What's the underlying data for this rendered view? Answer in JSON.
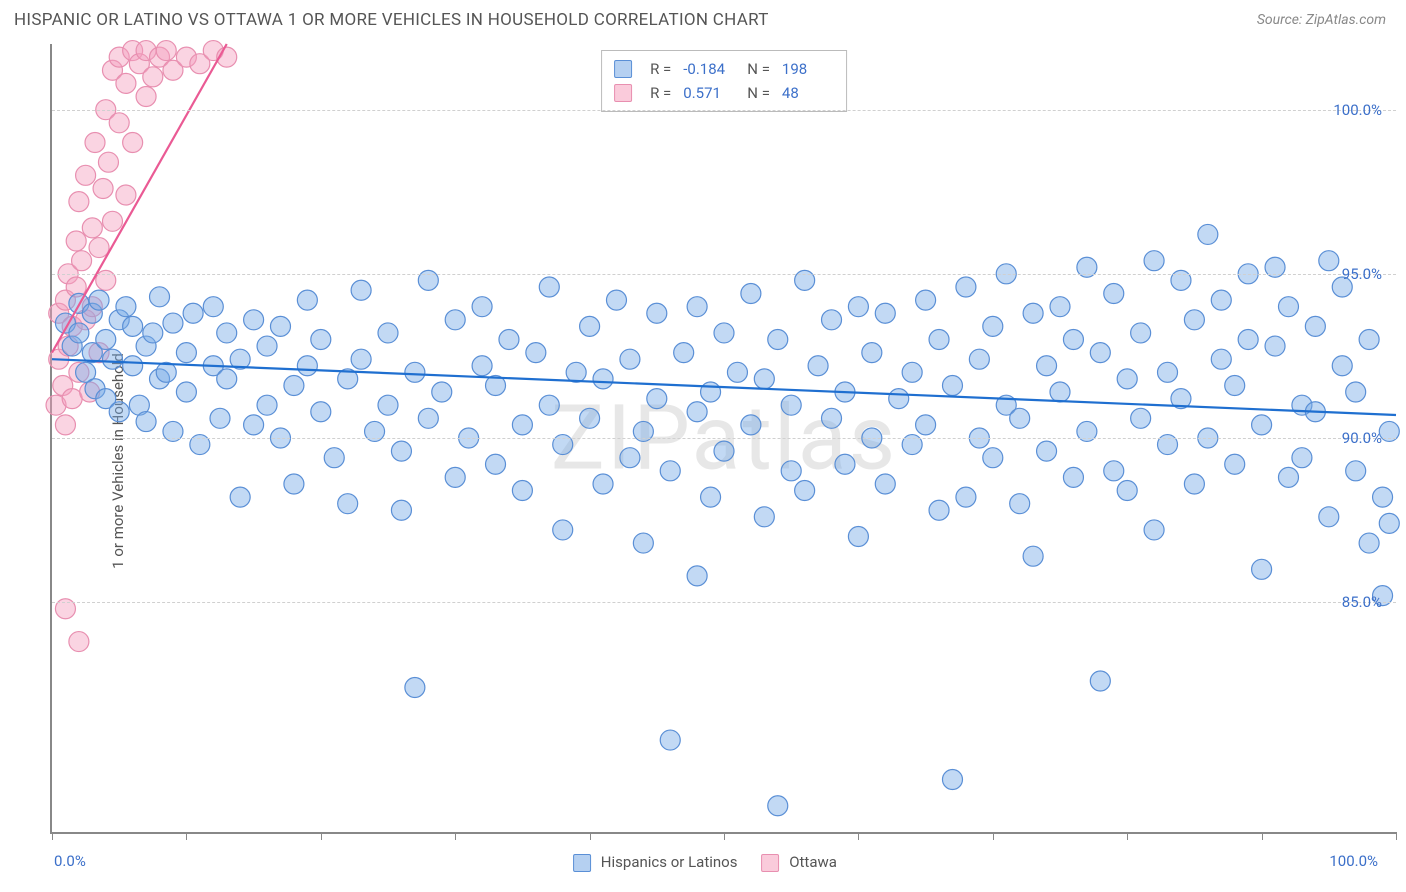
{
  "header": {
    "title": "HISPANIC OR LATINO VS OTTAWA 1 OR MORE VEHICLES IN HOUSEHOLD CORRELATION CHART",
    "source": "Source: ZipAtlas.com"
  },
  "chart": {
    "type": "scatter",
    "ylabel": "1 or more Vehicles in Household",
    "watermark": "ZIPatlas",
    "xlim": [
      0,
      100
    ],
    "ylim": [
      78,
      102
    ],
    "xtick_positions": [
      0,
      10,
      20,
      30,
      40,
      50,
      60,
      70,
      80,
      90,
      100
    ],
    "ytick_labels": [
      {
        "v": 85,
        "label": "85.0%"
      },
      {
        "v": 90,
        "label": "90.0%"
      },
      {
        "v": 95,
        "label": "95.0%"
      },
      {
        "v": 100,
        "label": "100.0%"
      }
    ],
    "xaxis_left_label": "0.0%",
    "xaxis_right_label": "100.0%",
    "grid_color": "#d0d0d0",
    "axis_color": "#888888",
    "background_color": "#ffffff",
    "label_color": "#3b6fc9",
    "marker_radius": 10,
    "marker_stroke_width": 1.2,
    "trend_line_width": 2.2,
    "series": [
      {
        "name": "Hispanics or Latinos",
        "fill": "rgba(120,170,230,0.45)",
        "stroke": "#5a8fd6",
        "trend_color": "#1f6fd0",
        "R": "-0.184",
        "N": "198",
        "trend": {
          "x1": 0,
          "y1": 92.4,
          "x2": 100,
          "y2": 90.7
        },
        "points": [
          [
            1,
            93.5
          ],
          [
            1.5,
            92.8
          ],
          [
            2,
            93.2
          ],
          [
            2,
            94.1
          ],
          [
            2.5,
            92.0
          ],
          [
            3,
            93.8
          ],
          [
            3,
            92.6
          ],
          [
            3.2,
            91.5
          ],
          [
            3.5,
            94.2
          ],
          [
            4,
            93.0
          ],
          [
            4,
            91.2
          ],
          [
            4.5,
            92.4
          ],
          [
            5,
            93.6
          ],
          [
            5,
            90.8
          ],
          [
            5.5,
            94.0
          ],
          [
            6,
            92.2
          ],
          [
            6,
            93.4
          ],
          [
            6.5,
            91.0
          ],
          [
            7,
            92.8
          ],
          [
            7,
            90.5
          ],
          [
            7.5,
            93.2
          ],
          [
            8,
            91.8
          ],
          [
            8,
            94.3
          ],
          [
            8.5,
            92.0
          ],
          [
            9,
            93.5
          ],
          [
            9,
            90.2
          ],
          [
            10,
            92.6
          ],
          [
            10,
            91.4
          ],
          [
            10.5,
            93.8
          ],
          [
            11,
            89.8
          ],
          [
            12,
            92.2
          ],
          [
            12,
            94.0
          ],
          [
            12.5,
            90.6
          ],
          [
            13,
            91.8
          ],
          [
            13,
            93.2
          ],
          [
            14,
            88.2
          ],
          [
            14,
            92.4
          ],
          [
            15,
            93.6
          ],
          [
            15,
            90.4
          ],
          [
            16,
            91.0
          ],
          [
            16,
            92.8
          ],
          [
            17,
            90.0
          ],
          [
            17,
            93.4
          ],
          [
            18,
            88.6
          ],
          [
            18,
            91.6
          ],
          [
            19,
            92.2
          ],
          [
            19,
            94.2
          ],
          [
            20,
            90.8
          ],
          [
            20,
            93.0
          ],
          [
            21,
            89.4
          ],
          [
            22,
            91.8
          ],
          [
            22,
            88.0
          ],
          [
            23,
            92.4
          ],
          [
            23,
            94.5
          ],
          [
            24,
            90.2
          ],
          [
            25,
            91.0
          ],
          [
            25,
            93.2
          ],
          [
            26,
            89.6
          ],
          [
            26,
            87.8
          ],
          [
            27,
            92.0
          ],
          [
            27,
            82.4
          ],
          [
            28,
            90.6
          ],
          [
            28,
            94.8
          ],
          [
            29,
            91.4
          ],
          [
            30,
            88.8
          ],
          [
            30,
            93.6
          ],
          [
            31,
            90.0
          ],
          [
            32,
            92.2
          ],
          [
            32,
            94.0
          ],
          [
            33,
            89.2
          ],
          [
            33,
            91.6
          ],
          [
            34,
            93.0
          ],
          [
            35,
            90.4
          ],
          [
            35,
            88.4
          ],
          [
            36,
            92.6
          ],
          [
            37,
            91.0
          ],
          [
            37,
            94.6
          ],
          [
            38,
            89.8
          ],
          [
            38,
            87.2
          ],
          [
            39,
            92.0
          ],
          [
            40,
            90.6
          ],
          [
            40,
            93.4
          ],
          [
            41,
            88.6
          ],
          [
            41,
            91.8
          ],
          [
            42,
            94.2
          ],
          [
            43,
            89.4
          ],
          [
            43,
            92.4
          ],
          [
            44,
            90.2
          ],
          [
            44,
            86.8
          ],
          [
            45,
            91.2
          ],
          [
            45,
            93.8
          ],
          [
            46,
            89.0
          ],
          [
            46,
            80.8
          ],
          [
            47,
            92.6
          ],
          [
            48,
            90.8
          ],
          [
            48,
            94.0
          ],
          [
            48,
            85.8
          ],
          [
            49,
            88.2
          ],
          [
            49,
            91.4
          ],
          [
            50,
            93.2
          ],
          [
            50,
            89.6
          ],
          [
            51,
            92.0
          ],
          [
            52,
            90.4
          ],
          [
            52,
            94.4
          ],
          [
            53,
            87.6
          ],
          [
            53,
            91.8
          ],
          [
            54,
            78.8
          ],
          [
            54,
            93.0
          ],
          [
            55,
            89.0
          ],
          [
            55,
            91.0
          ],
          [
            56,
            94.8
          ],
          [
            56,
            88.4
          ],
          [
            57,
            92.2
          ],
          [
            58,
            90.6
          ],
          [
            58,
            93.6
          ],
          [
            59,
            89.2
          ],
          [
            59,
            91.4
          ],
          [
            60,
            94.0
          ],
          [
            60,
            87.0
          ],
          [
            61,
            90.0
          ],
          [
            61,
            92.6
          ],
          [
            62,
            88.6
          ],
          [
            62,
            93.8
          ],
          [
            63,
            91.2
          ],
          [
            64,
            89.8
          ],
          [
            64,
            92.0
          ],
          [
            65,
            94.2
          ],
          [
            65,
            90.4
          ],
          [
            66,
            87.8
          ],
          [
            66,
            93.0
          ],
          [
            67,
            79.6
          ],
          [
            67,
            91.6
          ],
          [
            68,
            88.2
          ],
          [
            68,
            94.6
          ],
          [
            69,
            90.0
          ],
          [
            69,
            92.4
          ],
          [
            70,
            89.4
          ],
          [
            70,
            93.4
          ],
          [
            71,
            91.0
          ],
          [
            71,
            95.0
          ],
          [
            72,
            88.0
          ],
          [
            72,
            90.6
          ],
          [
            73,
            93.8
          ],
          [
            73,
            86.4
          ],
          [
            74,
            92.2
          ],
          [
            74,
            89.6
          ],
          [
            75,
            94.0
          ],
          [
            75,
            91.4
          ],
          [
            76,
            88.8
          ],
          [
            76,
            93.0
          ],
          [
            77,
            90.2
          ],
          [
            77,
            95.2
          ],
          [
            78,
            92.6
          ],
          [
            78,
            82.6
          ],
          [
            79,
            89.0
          ],
          [
            79,
            94.4
          ],
          [
            80,
            91.8
          ],
          [
            80,
            88.4
          ],
          [
            81,
            93.2
          ],
          [
            81,
            90.6
          ],
          [
            82,
            95.4
          ],
          [
            82,
            87.2
          ],
          [
            83,
            92.0
          ],
          [
            83,
            89.8
          ],
          [
            84,
            94.8
          ],
          [
            84,
            91.2
          ],
          [
            85,
            88.6
          ],
          [
            85,
            93.6
          ],
          [
            86,
            96.2
          ],
          [
            86,
            90.0
          ],
          [
            87,
            92.4
          ],
          [
            87,
            94.2
          ],
          [
            88,
            89.2
          ],
          [
            88,
            91.6
          ],
          [
            89,
            95.0
          ],
          [
            89,
            93.0
          ],
          [
            90,
            86.0
          ],
          [
            90,
            90.4
          ],
          [
            91,
            92.8
          ],
          [
            91,
            95.2
          ],
          [
            92,
            88.8
          ],
          [
            92,
            94.0
          ],
          [
            93,
            91.0
          ],
          [
            93,
            89.4
          ],
          [
            94,
            93.4
          ],
          [
            94,
            90.8
          ],
          [
            95,
            95.4
          ],
          [
            95,
            87.6
          ],
          [
            96,
            92.2
          ],
          [
            96,
            94.6
          ],
          [
            97,
            89.0
          ],
          [
            97,
            91.4
          ],
          [
            98,
            86.8
          ],
          [
            98,
            93.0
          ],
          [
            99,
            88.2
          ],
          [
            99,
            85.2
          ],
          [
            99.5,
            87.4
          ],
          [
            99.5,
            90.2
          ]
        ]
      },
      {
        "name": "Ottawa",
        "fill": "rgba(245,160,190,0.45)",
        "stroke": "#e88fb0",
        "trend_color": "#ea5a94",
        "R": "0.571",
        "N": "48",
        "trend": {
          "x1": 0,
          "y1": 92.6,
          "x2": 13,
          "y2": 102
        },
        "points": [
          [
            0.3,
            91.0
          ],
          [
            0.5,
            92.4
          ],
          [
            0.5,
            93.8
          ],
          [
            0.8,
            91.6
          ],
          [
            1.0,
            94.2
          ],
          [
            1.0,
            90.4
          ],
          [
            1.2,
            95.0
          ],
          [
            1.2,
            92.8
          ],
          [
            1.5,
            93.4
          ],
          [
            1.5,
            91.2
          ],
          [
            1.8,
            96.0
          ],
          [
            1.8,
            94.6
          ],
          [
            2.0,
            92.0
          ],
          [
            2.0,
            97.2
          ],
          [
            2.2,
            95.4
          ],
          [
            2.5,
            93.6
          ],
          [
            2.5,
            98.0
          ],
          [
            2.8,
            91.4
          ],
          [
            3.0,
            96.4
          ],
          [
            3.0,
            94.0
          ],
          [
            3.2,
            99.0
          ],
          [
            3.5,
            95.8
          ],
          [
            3.5,
            92.6
          ],
          [
            3.8,
            97.6
          ],
          [
            4.0,
            100.0
          ],
          [
            4.0,
            94.8
          ],
          [
            4.2,
            98.4
          ],
          [
            4.5,
            101.2
          ],
          [
            4.5,
            96.6
          ],
          [
            5.0,
            99.6
          ],
          [
            5.0,
            101.6
          ],
          [
            5.5,
            97.4
          ],
          [
            5.5,
            100.8
          ],
          [
            6.0,
            101.8
          ],
          [
            6.0,
            99.0
          ],
          [
            6.5,
            101.4
          ],
          [
            7.0,
            100.4
          ],
          [
            7.0,
            101.8
          ],
          [
            7.5,
            101.0
          ],
          [
            8.0,
            101.6
          ],
          [
            8.5,
            101.8
          ],
          [
            9.0,
            101.2
          ],
          [
            10.0,
            101.6
          ],
          [
            11.0,
            101.4
          ],
          [
            12.0,
            101.8
          ],
          [
            13.0,
            101.6
          ],
          [
            1.0,
            84.8
          ],
          [
            2.0,
            83.8
          ]
        ]
      }
    ],
    "bottom_legend": [
      {
        "swatch_fill": "rgba(120,170,230,0.55)",
        "swatch_stroke": "#5a8fd6",
        "label": "Hispanics or Latinos"
      },
      {
        "swatch_fill": "rgba(245,160,190,0.55)",
        "swatch_stroke": "#e88fb0",
        "label": "Ottawa"
      }
    ],
    "top_legend_labels": {
      "R": "R =",
      "N": "N ="
    }
  }
}
